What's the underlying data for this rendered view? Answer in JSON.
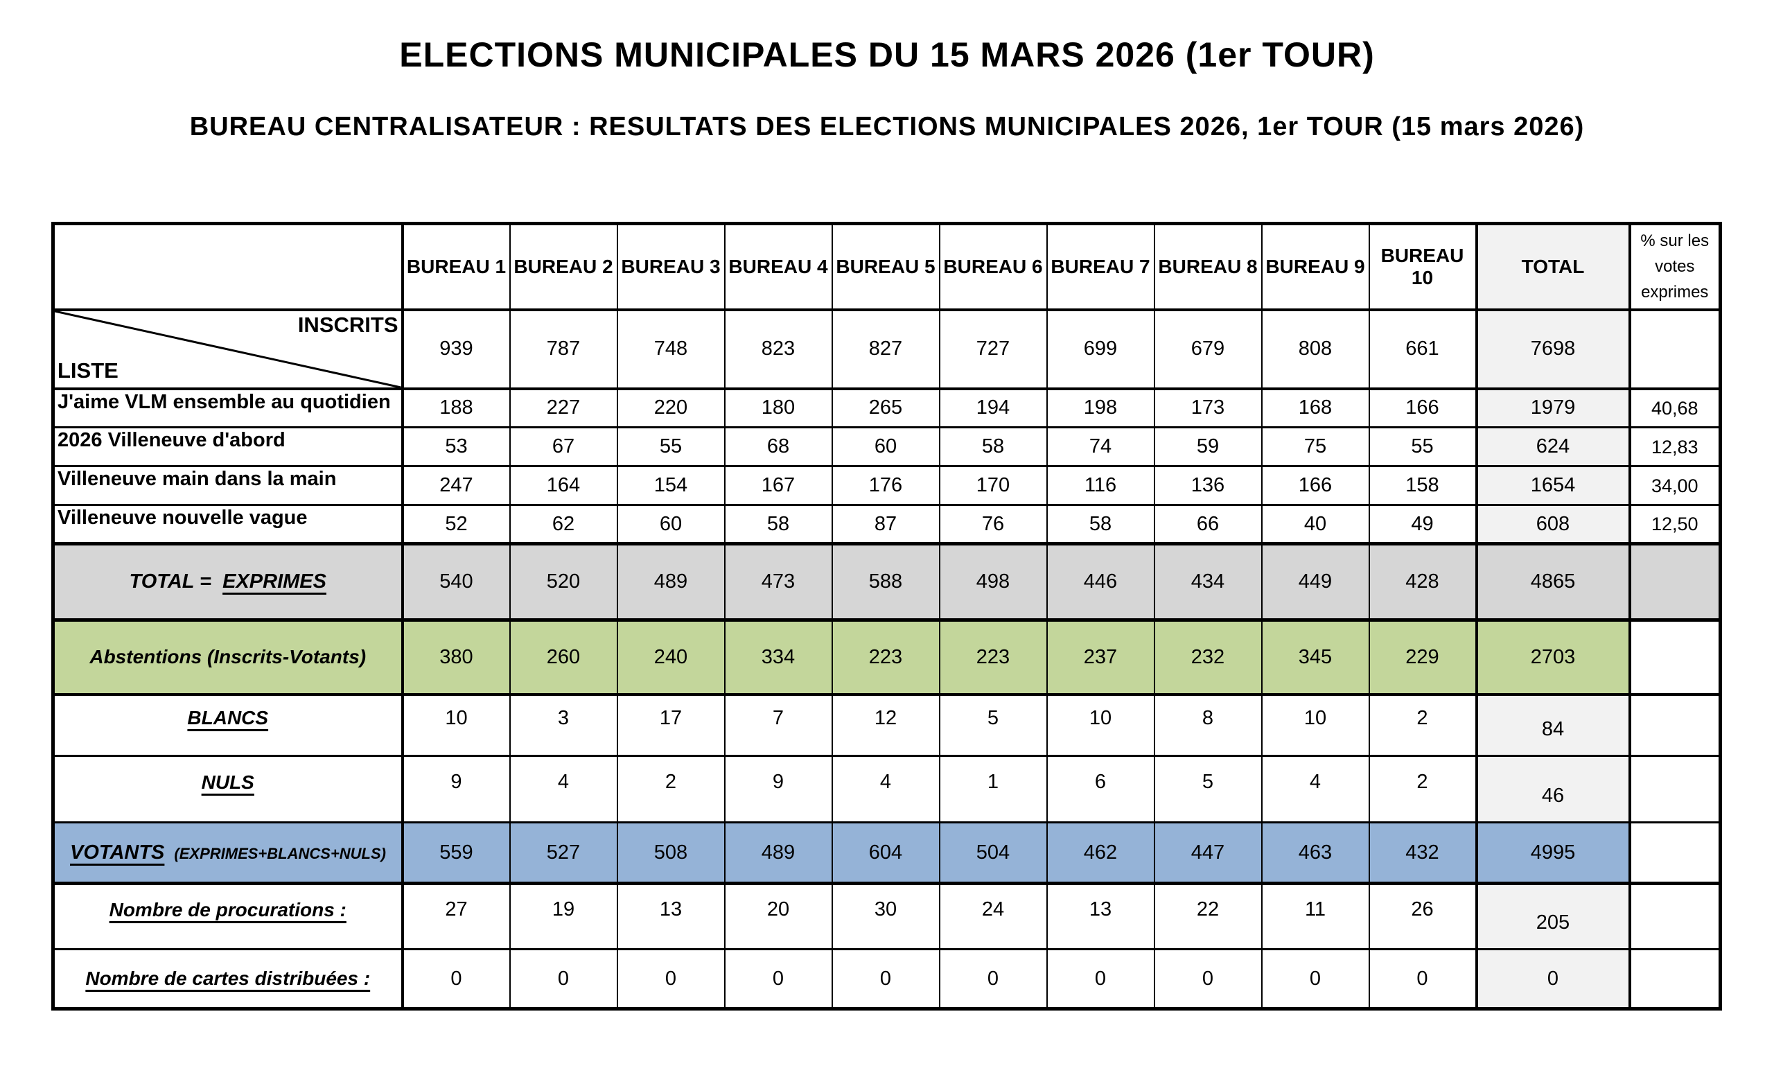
{
  "title": "ELECTIONS MUNICIPALES DU 15 MARS 2026 (1er TOUR)",
  "subtitle": "BUREAU CENTRALISATEUR : RESULTATS DES ELECTIONS MUNICIPALES 2026, 1er TOUR (15 mars 2026)",
  "colors": {
    "exprimes_row": "#d6d6d6",
    "abstentions_row": "#c3d69b",
    "votants_row": "#95b3d7",
    "total_column": "#f2f2f2",
    "border": "#000000"
  },
  "table": {
    "corner": {
      "top_right": "INSCRITS",
      "bottom_left": "LISTE"
    },
    "bureau_headers": [
      "BUREAU 1",
      "BUREAU 2",
      "BUREAU 3",
      "BUREAU 4",
      "BUREAU 5",
      "BUREAU 6",
      "BUREAU 7",
      "BUREAU 8",
      "BUREAU 9",
      "BUREAU 10"
    ],
    "total_header": "TOTAL",
    "pct_header": "% sur les votes exprimes",
    "inscrits": {
      "values": [
        939,
        787,
        748,
        823,
        827,
        727,
        699,
        679,
        808,
        661
      ],
      "total": 7698
    },
    "lists": [
      {
        "name": "J'aime VLM ensemble au quotidien",
        "values": [
          188,
          227,
          220,
          180,
          265,
          194,
          198,
          173,
          168,
          166
        ],
        "total": 1979,
        "pct": "40,68"
      },
      {
        "name": "2026 Villeneuve d'abord",
        "values": [
          53,
          67,
          55,
          68,
          60,
          58,
          74,
          59,
          75,
          55
        ],
        "total": 624,
        "pct": "12,83"
      },
      {
        "name": "Villeneuve main dans la main",
        "values": [
          247,
          164,
          154,
          167,
          176,
          170,
          116,
          136,
          166,
          158
        ],
        "total": 1654,
        "pct": "34,00"
      },
      {
        "name": "Villeneuve nouvelle vague",
        "values": [
          52,
          62,
          60,
          58,
          87,
          76,
          58,
          66,
          40,
          49
        ],
        "total": 608,
        "pct": "12,50"
      }
    ],
    "exprimes": {
      "label_prefix": "TOTAL =",
      "label_emph": "EXPRIMES",
      "values": [
        540,
        520,
        489,
        473,
        588,
        498,
        446,
        434,
        449,
        428
      ],
      "total": 4865
    },
    "abstentions": {
      "label": "Abstentions (Inscrits-Votants)",
      "values": [
        380,
        260,
        240,
        334,
        223,
        223,
        237,
        232,
        345,
        229
      ],
      "total": 2703
    },
    "blancs": {
      "label": "BLANCS",
      "values": [
        10,
        3,
        17,
        7,
        12,
        5,
        10,
        8,
        10,
        2
      ],
      "total": 84
    },
    "nuls": {
      "label": "NULS",
      "values": [
        9,
        4,
        2,
        9,
        4,
        1,
        6,
        5,
        4,
        2
      ],
      "total": 46
    },
    "votants": {
      "label": "VOTANTS",
      "sublabel": "(EXPRIMES+BLANCS+NULS)",
      "values": [
        559,
        527,
        508,
        489,
        604,
        504,
        462,
        447,
        463,
        432
      ],
      "total": 4995
    },
    "procurations": {
      "label": "Nombre de procurations :",
      "values": [
        27,
        19,
        13,
        20,
        30,
        24,
        13,
        22,
        11,
        26
      ],
      "total": 205
    },
    "cartes": {
      "label": "Nombre de cartes distribuées :",
      "values": [
        0,
        0,
        0,
        0,
        0,
        0,
        0,
        0,
        0,
        0
      ],
      "total": 0
    }
  }
}
